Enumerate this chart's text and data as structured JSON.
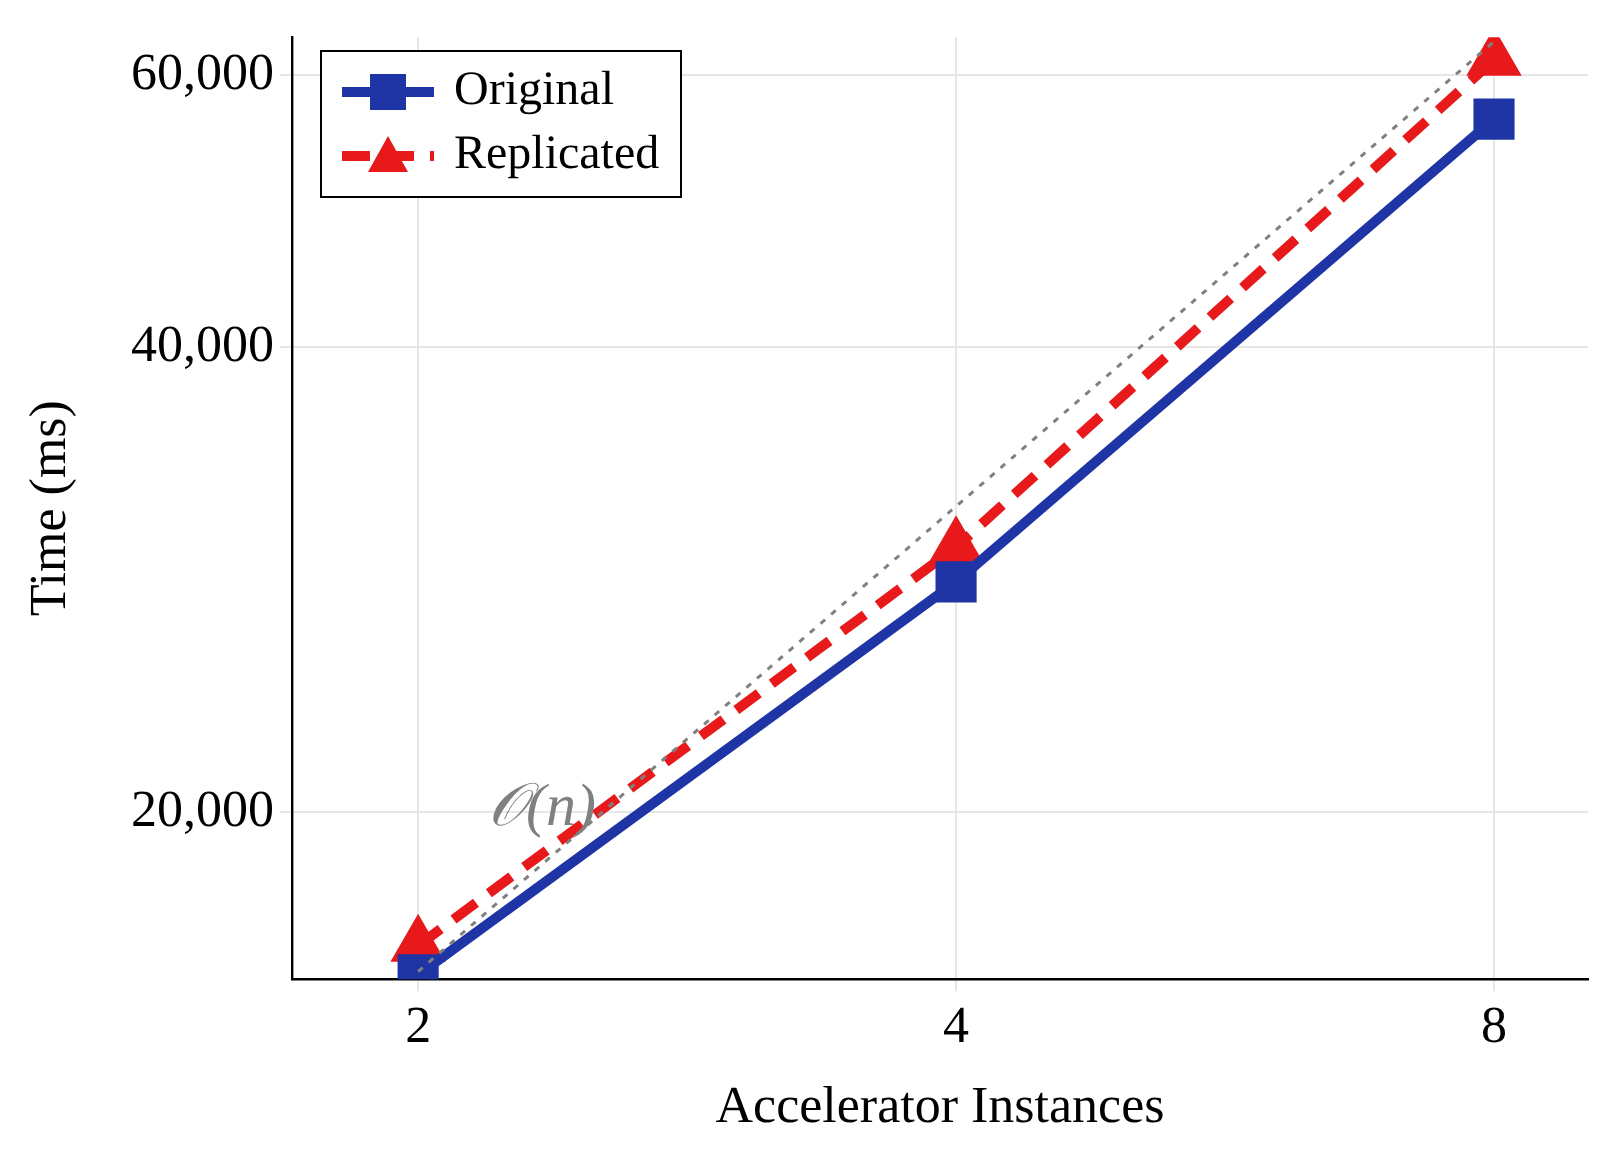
{
  "chart_data": {
    "type": "line",
    "xlabel": "Accelerator Instances",
    "ylabel": "Time (ms)",
    "x": [
      2,
      4,
      8
    ],
    "series": [
      {
        "name": "Original",
        "color": "#1f35a5",
        "values": [
          15700,
          28200,
          56200
        ],
        "marker": "square",
        "line_style": "solid"
      },
      {
        "name": "Replicated",
        "color": "#e8191b",
        "values": [
          16400,
          29700,
          61400
        ],
        "marker": "triangle",
        "line_style": "dashed"
      },
      {
        "color": "#808080",
        "values": [
          15780,
          31560,
          63100
        ],
        "marker": "none",
        "line_style": "dotted"
      }
    ],
    "annotations": [
      "𝒪(n)"
    ],
    "log": "xy",
    "xlim": [
      1.7,
      9.03
    ],
    "xticks": [
      2,
      4,
      8
    ],
    "ylim": [
      15600,
      63500
    ],
    "yticks": [
      {
        "value": 20000,
        "label": "20,000"
      },
      {
        "value": 40000,
        "label": "40,000"
      },
      {
        "value": 60000,
        "label": "60,000"
      }
    ],
    "grid": true,
    "legend": "top left"
  }
}
